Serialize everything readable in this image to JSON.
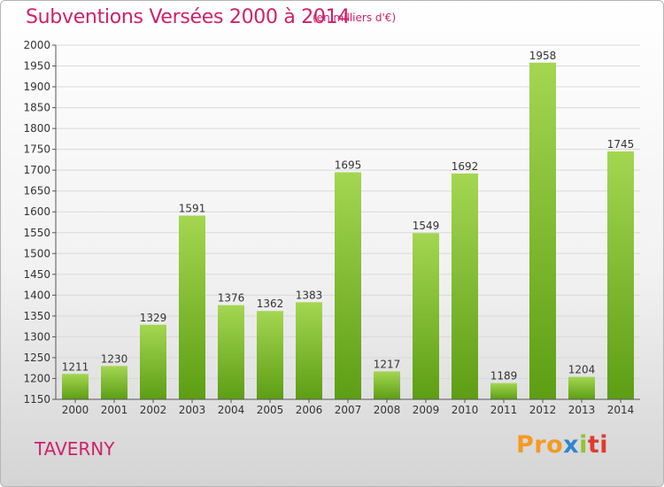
{
  "title": "Subventions Versées 2000 à 2014",
  "subtitle": "(en milliers d'€)",
  "city": "TAVERNY",
  "logo": {
    "p1": "Pro",
    "p2": "x",
    "p3": "i",
    "p4": "ti"
  },
  "colors": {
    "accent": "#d0206b",
    "bar_light": "#a4d651",
    "bar_dark": "#5c9e14",
    "grid": "#d9d9d9"
  },
  "chart_data": {
    "type": "bar",
    "title": "Subventions Versées 2000 à 2014",
    "subtitle": "(en milliers d'€)",
    "xlabel": "",
    "ylabel": "",
    "ylim": [
      1150,
      2000
    ],
    "ytick_step": 50,
    "grid": true,
    "legend": "none",
    "categories": [
      "2000",
      "2001",
      "2002",
      "2003",
      "2004",
      "2005",
      "2006",
      "2007",
      "2008",
      "2009",
      "2010",
      "2011",
      "2012",
      "2013",
      "2014"
    ],
    "values": [
      1211,
      1230,
      1329,
      1591,
      1376,
      1362,
      1383,
      1695,
      1217,
      1549,
      1692,
      1189,
      1958,
      1204,
      1745
    ]
  }
}
